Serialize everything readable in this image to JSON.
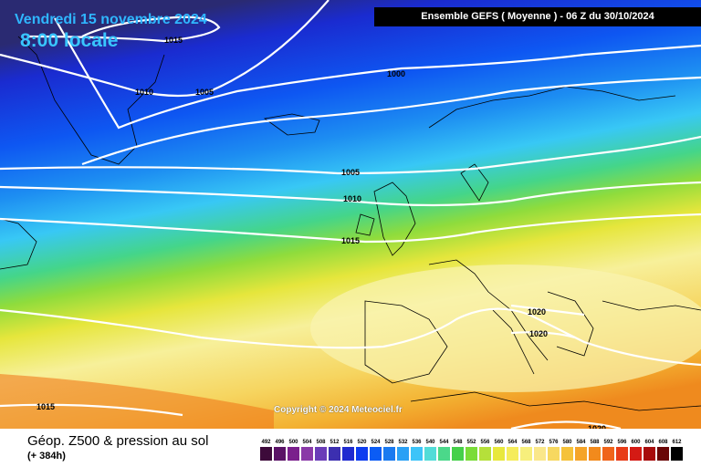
{
  "header": {
    "date": "Vendredi 15 novembre 2024",
    "time": "8:00 locale",
    "run": "Ensemble GEFS  ( Moyenne )  -  06 Z du 30/10/2024"
  },
  "footer": {
    "copyright": "Copyright © 2024 Meteociel.fr",
    "caption": "Géop. Z500 & pression au sol",
    "subcaption": "(+ 384h)"
  },
  "isobar_labels": [
    {
      "text": "1015"
    },
    {
      "text": "1010"
    },
    {
      "text": "1005"
    },
    {
      "text": "1000"
    },
    {
      "text": "1005"
    },
    {
      "text": "1010"
    },
    {
      "text": "1015"
    },
    {
      "text": "1020"
    },
    {
      "text": "1020"
    },
    {
      "text": "1015"
    },
    {
      "text": "1020"
    }
  ],
  "legend": {
    "ticks": [
      "492",
      "496",
      "500",
      "504",
      "508",
      "512",
      "516",
      "520",
      "524",
      "528",
      "532",
      "536",
      "540",
      "544",
      "548",
      "552",
      "556",
      "560",
      "564",
      "568",
      "572",
      "576",
      "580",
      "584",
      "588",
      "592",
      "596",
      "600",
      "604",
      "608",
      "612"
    ],
    "colors": [
      "#3d0a3a",
      "#5a1266",
      "#7a1f8c",
      "#8a3aa8",
      "#6a3cb8",
      "#3c2fb0",
      "#1f2ad0",
      "#0d3cf0",
      "#0b5cf5",
      "#1a7af0",
      "#2aa0f5",
      "#3dc4f8",
      "#52dcd8",
      "#4bd88a",
      "#46d04a",
      "#7adc38",
      "#b5e03a",
      "#e8e83c",
      "#f5ec5a",
      "#f7ef7c",
      "#fae78a",
      "#f7d860",
      "#f5c23a",
      "#f5a428",
      "#f28a1c",
      "#f0641a",
      "#e83c18",
      "#d41a14",
      "#a80c0c",
      "#6a0606",
      "#000000"
    ]
  }
}
